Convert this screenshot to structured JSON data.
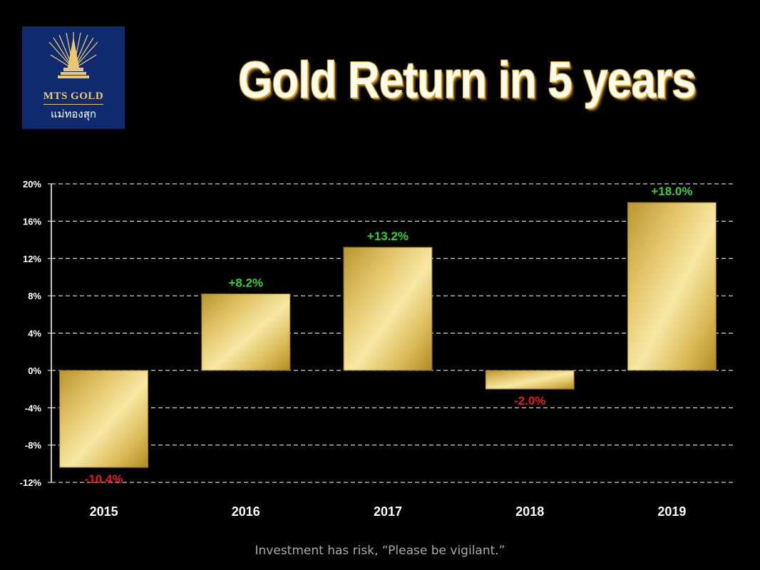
{
  "logo": {
    "brand_en": "MTS GOLD",
    "brand_th": "แม่ทองสุก"
  },
  "title": "Gold Return in 5 years",
  "disclaimer": "Investment has risk, “Please be vigilant.”",
  "colors": {
    "background": "#000000",
    "bar_gold": "#e8cf78",
    "positive_label": "#2fd22f",
    "negative_label": "#e8161c",
    "logo_bg": "#0f2a6e"
  },
  "chart_data": {
    "type": "bar",
    "categories": [
      "2015",
      "2016",
      "2017",
      "2018",
      "2019"
    ],
    "values": [
      -10.4,
      8.2,
      13.2,
      -2.0,
      18.0
    ],
    "data_labels": [
      "-10.4%",
      "+8.2%",
      "+13.2%",
      "-2.0%",
      "+18.0%"
    ],
    "ylim": [
      -12,
      20
    ],
    "yticks": [
      20,
      16,
      12,
      8,
      4,
      0,
      -4,
      -8,
      -12
    ],
    "ytick_labels": [
      "20%",
      "16%",
      "12%",
      "8%",
      "4%",
      "0%",
      "-4%",
      "-8%",
      "-12%"
    ],
    "grid": true,
    "legend": "none"
  }
}
